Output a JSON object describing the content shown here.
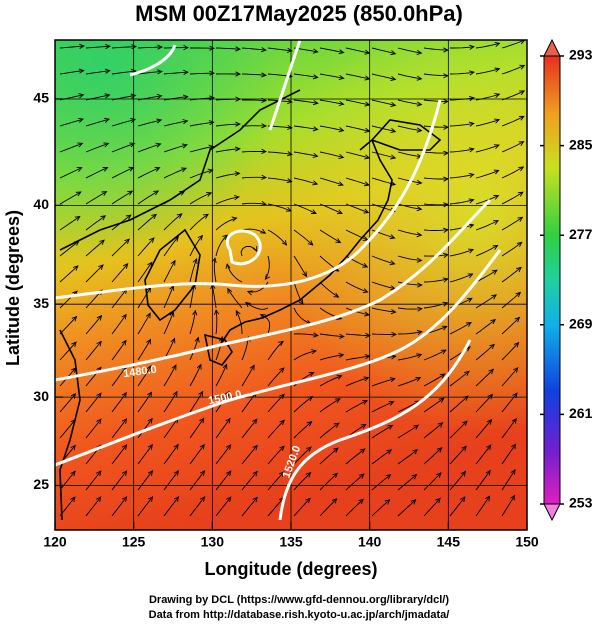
{
  "chart_data": {
    "type": "map",
    "title": "MSM 00Z17May2025 (850.0hPa)",
    "x_label": "Longitude (degrees)",
    "y_label": "Latitude  (degrees)",
    "projection": "mercator",
    "xlim": [
      120,
      150
    ],
    "ylim": [
      22.4,
      47.6
    ],
    "xticks": [
      120,
      125,
      130,
      135,
      140,
      145,
      150
    ],
    "yticks": [
      25,
      30,
      35,
      40,
      45
    ],
    "grid": true,
    "colorbar": {
      "lim": [
        253,
        293
      ],
      "ticks": [
        253,
        261,
        269,
        277,
        285,
        293
      ]
    },
    "contour_labels": [
      "1480.0",
      "1500.0",
      "1520.0"
    ],
    "footnotes": [
      "Drawing by DCL (https://www.gfd-dennou.org/library/dcl/)",
      "Data from http://database.rish.kyoto-u.ac.jp/arch/jmadata/"
    ]
  }
}
